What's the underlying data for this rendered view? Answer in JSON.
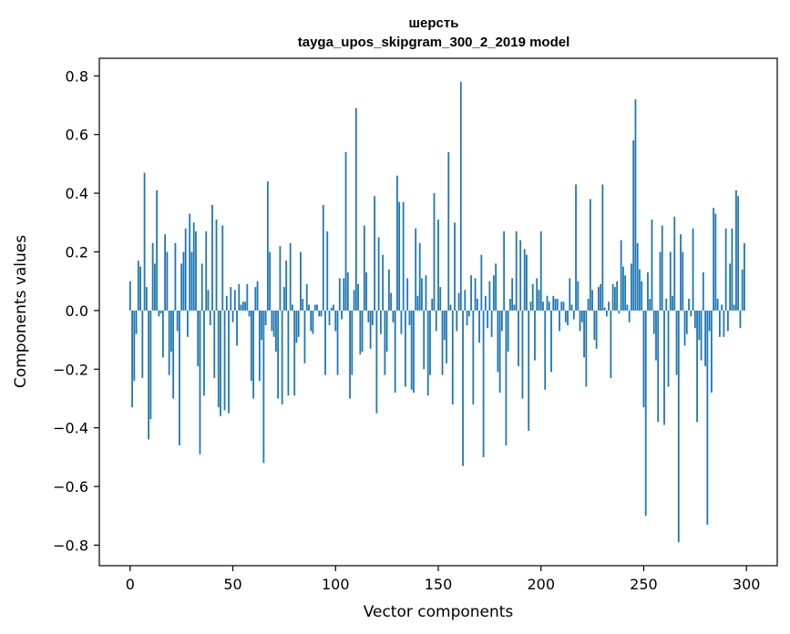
{
  "chart_data": {
    "type": "bar",
    "title": "шерсть",
    "subtitle": "tayga_upos_skipgram_300_2_2019 model",
    "xlabel": "Vector components",
    "ylabel": "Components values",
    "xlim": [
      -15,
      315
    ],
    "ylim": [
      -0.87,
      0.86
    ],
    "xticks": [
      0,
      50,
      100,
      150,
      200,
      250,
      300
    ],
    "xtick_labels": [
      "0",
      "50",
      "100",
      "150",
      "200",
      "250",
      "300"
    ],
    "yticks": [
      -0.8,
      -0.6,
      -0.4,
      -0.2,
      0.0,
      0.2,
      0.4,
      0.6,
      0.8
    ],
    "ytick_labels": [
      "−0.8",
      "−0.6",
      "−0.4",
      "−0.2",
      "0.0",
      "0.2",
      "0.4",
      "0.6",
      "0.8"
    ],
    "grid": false,
    "bar_color": "#1f77b4",
    "values": [
      0.1,
      -0.33,
      -0.24,
      -0.08,
      0.17,
      0.15,
      -0.23,
      0.47,
      0.08,
      -0.44,
      -0.37,
      0.23,
      0.16,
      0.41,
      -0.02,
      -0.01,
      -0.16,
      0.26,
      0.2,
      -0.22,
      -0.14,
      -0.3,
      0.23,
      -0.07,
      -0.46,
      0.16,
      0.2,
      0.28,
      -0.09,
      0.33,
      0.2,
      0.3,
      0.27,
      -0.19,
      -0.49,
      0.16,
      -0.29,
      0.27,
      0.07,
      -0.05,
      0.36,
      -0.23,
      0.31,
      -0.33,
      -0.36,
      0.29,
      -0.34,
      0.05,
      -0.35,
      0.08,
      -0.04,
      0.07,
      -0.12,
      0.09,
      0.02,
      0.03,
      0.03,
      0.09,
      -0.02,
      -0.24,
      -0.3,
      0.08,
      0.1,
      -0.24,
      -0.1,
      -0.52,
      -0.05,
      0.44,
      0.2,
      -0.07,
      -0.09,
      -0.14,
      -0.3,
      0.22,
      -0.32,
      0.08,
      0.17,
      -0.29,
      0.23,
      0.02,
      -0.29,
      -0.11,
      -0.09,
      0.2,
      0.04,
      -0.18,
      0.09,
      0.02,
      -0.07,
      -0.08,
      0.02,
      0.02,
      -0.02,
      -0.02,
      0.36,
      -0.22,
      0.27,
      -0.05,
      0.01,
      0.02,
      -0.07,
      -0.22,
      0.11,
      -0.03,
      0.11,
      0.54,
      0.13,
      -0.3,
      -0.22,
      0.07,
      0.69,
      0.09,
      -0.15,
      -0.14,
      0.29,
      0.13,
      -0.04,
      -0.13,
      -0.05,
      0.39,
      -0.35,
      0.25,
      -0.08,
      0.19,
      -0.22,
      -0.14,
      0.14,
      0.06,
      -0.04,
      -0.28,
      0.46,
      0.37,
      -0.08,
      0.37,
      -0.26,
      0.11,
      -0.05,
      -0.27,
      -0.28,
      0.28,
      0.05,
      0.23,
      0.11,
      -0.2,
      0.12,
      -0.29,
      -0.22,
      0.04,
      0.4,
      -0.07,
      0.31,
      0.08,
      -0.22,
      -0.1,
      -0.18,
      0.54,
      0.02,
      -0.32,
      0.3,
      -0.07,
      0.06,
      0.78,
      -0.53,
      0.07,
      -0.05,
      -0.02,
      0.12,
      -0.32,
      0.11,
      0.04,
      -0.11,
      0.19,
      -0.5,
      0.05,
      -0.06,
      0.1,
      -0.09,
      0.12,
      0.16,
      -0.21,
      -0.28,
      -0.07,
      0.27,
      -0.46,
      -0.14,
      0.04,
      0.11,
      0.02,
      0.27,
      -0.19,
      0.24,
      -0.3,
      0.21,
      0.19,
      -0.41,
      0.03,
      0.09,
      -0.17,
      0.11,
      0.07,
      0.27,
      0.03,
      -0.27,
      0.05,
      0.03,
      -0.21,
      0.05,
      0.04,
      0.04,
      -0.07,
      0.03,
      0.03,
      -0.04,
      -0.05,
      0.11,
      0.02,
      -0.03,
      0.43,
      0.1,
      -0.07,
      -0.04,
      -0.16,
      -0.26,
      0.04,
      0.38,
      0.07,
      -0.1,
      -0.13,
      0.08,
      0.09,
      0.43,
      0.01,
      -0.02,
      0.03,
      -0.23,
      0.09,
      0.08,
      0.1,
      -0.01,
      0.24,
      0.15,
      0.12,
      0.02,
      -0.04,
      0.16,
      0.58,
      0.72,
      0.23,
      0.14,
      0.1,
      -0.33,
      -0.7,
      0.13,
      0.04,
      0.31,
      -0.08,
      -0.17,
      -0.38,
      0.2,
      0.29,
      -0.39,
      0.04,
      -0.26,
      0.2,
      0.05,
      0.32,
      -0.22,
      -0.79,
      0.26,
      0.2,
      -0.12,
      -0.08,
      0.04,
      -0.02,
      0.28,
      -0.06,
      -0.38,
      -0.1,
      -0.17,
      0.13,
      -0.19,
      -0.73,
      -0.07,
      -0.28,
      0.35,
      0.33,
      0.04,
      -0.09,
      0.02,
      -0.09,
      0.28,
      -0.07,
      0.16,
      0.28,
      0.02,
      0.41,
      0.39,
      -0.06,
      0.14,
      0.23
    ]
  }
}
